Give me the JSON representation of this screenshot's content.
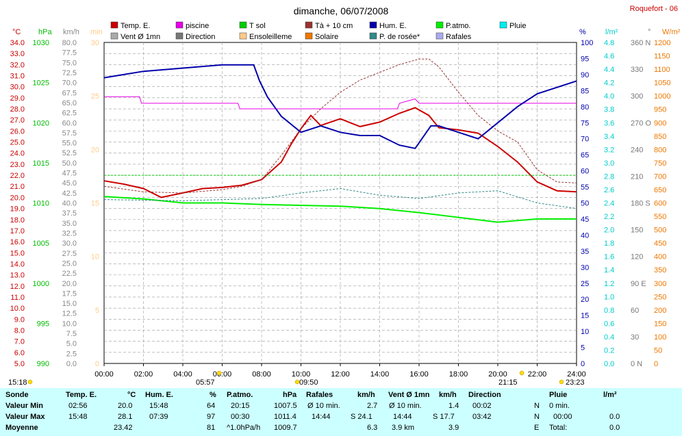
{
  "title": "dimanche, 06/07/2008",
  "station": "Roquefort - 06",
  "legend": [
    {
      "label": "Temp. E.",
      "color": "#cc0000",
      "style": "box"
    },
    {
      "label": "piscine",
      "color": "#e600e6",
      "style": "box"
    },
    {
      "label": "T sol",
      "color": "#00cc00",
      "style": "box"
    },
    {
      "label": "Tà + 10 cm",
      "color": "#993333",
      "style": "box"
    },
    {
      "label": "Hum. E.",
      "color": "#0000aa",
      "style": "box"
    },
    {
      "label": "P.atmo.",
      "color": "#00ee00",
      "style": "box"
    },
    {
      "label": "Pluie",
      "color": "#00eeee",
      "style": "box"
    },
    {
      "label": "Vent Ø 1mn",
      "color": "#aaaaaa",
      "style": "box"
    },
    {
      "label": "Direction",
      "color": "#777777",
      "style": "box"
    },
    {
      "label": "Ensoleilleme",
      "color": "#ffcc88",
      "style": "box"
    },
    {
      "label": "Solaire",
      "color": "#ee7700",
      "style": "box"
    },
    {
      "label": "P. de rosée*",
      "color": "#338888",
      "style": "box"
    },
    {
      "label": "Rafales",
      "color": "#aaaaee",
      "style": "box"
    }
  ],
  "axis_units": {
    "temp": "°C",
    "press": "hPa",
    "wind": "km/h",
    "min": "min",
    "hum": "%",
    "rain": "l/m²",
    "dir": "°",
    "solar": "W/m²"
  },
  "chart_data": {
    "type": "line",
    "x_ticks": [
      "00:00",
      "02:00",
      "04:00",
      "06:00",
      "08:00",
      "10:00",
      "12:00",
      "14:00",
      "16:00",
      "18:00",
      "20:00",
      "22:00",
      "24:00"
    ],
    "axes": {
      "temp": {
        "min": 5,
        "max": 34,
        "step": 1,
        "color": "#cc0000"
      },
      "press": {
        "min": 990,
        "max": 1030,
        "step": 5,
        "color": "#00bb00"
      },
      "wind": {
        "min": 0,
        "max": 80,
        "step": 2.5,
        "color": "#888888"
      },
      "minutes": {
        "min": 0,
        "max": 30,
        "step": 5,
        "color": "#ffcc88"
      },
      "hum": {
        "min": 0,
        "max": 100,
        "step": 5,
        "color": "#0000aa"
      },
      "rain": {
        "min": 0,
        "max": 4.8,
        "step": 0.2,
        "color": "#00cccc"
      },
      "dir": {
        "min": 0,
        "max": 360,
        "step": 30,
        "color": "#777777",
        "labels": {
          "0": "N",
          "90": "E",
          "180": "S",
          "270": "O",
          "360": "N"
        }
      },
      "solar": {
        "min": 0,
        "max": 1200,
        "step": 50,
        "color": "#ee7700"
      }
    },
    "series": [
      {
        "name": "Temp. E.",
        "axis": "temp",
        "color": "#cc0000",
        "x": [
          0,
          1,
          2,
          2.9,
          4,
          5,
          6,
          7,
          8,
          9,
          9.5,
          10,
          10.5,
          11,
          12,
          13,
          14,
          15,
          15.8,
          16.5,
          17,
          18,
          19,
          20,
          21,
          22,
          22.5,
          23,
          24
        ],
        "y": [
          21.5,
          21.2,
          20.8,
          20.0,
          20.4,
          20.8,
          20.9,
          21.1,
          21.6,
          23.2,
          24.8,
          26.2,
          27.4,
          26.5,
          27.1,
          26.4,
          26.8,
          27.6,
          28.1,
          27.4,
          26.3,
          26.1,
          25.8,
          24.6,
          23.2,
          21.4,
          21.0,
          20.6,
          20.5
        ]
      },
      {
        "name": "piscine",
        "axis": "temp",
        "color": "#e600e6",
        "x": [
          0,
          1.8,
          1.9,
          6.8,
          6.9,
          10,
          14.9,
          15.0,
          15.8,
          16.0,
          21.9,
          22.0,
          24
        ],
        "y": [
          29.1,
          29.1,
          28.5,
          28.5,
          28.0,
          28.0,
          28.0,
          28.5,
          28.9,
          28.5,
          28.5,
          28.5,
          28.5
        ]
      },
      {
        "name": "T sol",
        "axis": "temp",
        "color": "#00cc00",
        "x": [
          0,
          24
        ],
        "y": [
          22.0,
          22.0
        ]
      },
      {
        "name": "Tà + 10 cm",
        "axis": "temp",
        "color": "#993333",
        "x": [
          0,
          2,
          4,
          6,
          7,
          8,
          9,
          10,
          11,
          12,
          13,
          14,
          15,
          16,
          16.5,
          17,
          18,
          19,
          20,
          21,
          22,
          23,
          24
        ],
        "y": [
          21.0,
          20.5,
          20.4,
          20.7,
          21.0,
          21.6,
          23.8,
          26.2,
          28.0,
          29.5,
          30.6,
          31.3,
          32.0,
          32.5,
          32.5,
          31.8,
          29.5,
          27.4,
          26.0,
          25.0,
          22.5,
          21.4,
          21.3
        ]
      },
      {
        "name": "Hum. E.",
        "axis": "hum",
        "color": "#0000aa",
        "x": [
          0,
          1,
          2,
          4,
          6,
          7.6,
          7.9,
          8.3,
          9,
          10,
          11,
          12,
          13,
          14,
          15,
          15.8,
          16.6,
          17,
          18,
          19,
          20,
          21,
          22,
          23,
          24
        ],
        "y": [
          89,
          90,
          91,
          92,
          93,
          93,
          88,
          83,
          77,
          72,
          74,
          72,
          71,
          71,
          68,
          67,
          74,
          74,
          72,
          70,
          75,
          80,
          84,
          86,
          88
        ]
      },
      {
        "name": "P.atmo.",
        "axis": "press",
        "color": "#00ee00",
        "x": [
          0,
          2,
          4,
          6,
          8,
          10,
          12,
          14,
          16,
          18,
          20,
          22,
          24
        ],
        "y": [
          1010.8,
          1010.5,
          1010.0,
          1010.0,
          1009.8,
          1009.7,
          1009.6,
          1009.3,
          1008.8,
          1008.2,
          1007.6,
          1008.0,
          1008.0
        ]
      },
      {
        "name": "P. de rosée*",
        "axis": "temp",
        "color": "#338888",
        "x": [
          0,
          4,
          8,
          10,
          12,
          14,
          16,
          18,
          20,
          22,
          24
        ],
        "y": [
          19.8,
          19.7,
          19.9,
          20.4,
          20.8,
          20.2,
          19.9,
          20.4,
          20.6,
          19.5,
          19.0
        ]
      }
    ],
    "minmax": {
      "max_temp": 28.1,
      "min_temp": 20.0,
      "max_hum": 97,
      "min_hum": 64
    }
  },
  "timeline": {
    "left_time": "15:18",
    "right_time": "23:23",
    "marker_sunrise": "05:57",
    "marker_sunset": "21:15",
    "marker_morning": "09:50"
  },
  "summary": {
    "rows": [
      "Sonde",
      "Valeur Min",
      "Valeur Max",
      "Moyenne"
    ],
    "cols": [
      {
        "header": "Temp. E.",
        "unit": "°C",
        "cells": [
          [
            "02:56",
            "20.0"
          ],
          [
            "15:48",
            "28.1"
          ],
          [
            "",
            "23.42"
          ]
        ]
      },
      {
        "header": "Hum. E.",
        "unit": "%",
        "cells": [
          [
            "15:48",
            "64"
          ],
          [
            "07:39",
            "97"
          ],
          [
            "",
            "81"
          ]
        ]
      },
      {
        "header": "P.atmo.",
        "unit": "hPa",
        "cells": [
          [
            "20:15",
            "1007.5"
          ],
          [
            "00:30",
            "1011.4"
          ],
          [
            "^1.0hPa/h",
            "1009.7"
          ]
        ]
      },
      {
        "header": "Rafales",
        "unit": "km/h",
        "cells": [
          [
            "Ø 10 min.",
            "2.7"
          ],
          [
            "14:44",
            "S 24.1"
          ],
          [
            "",
            "6.3"
          ]
        ]
      },
      {
        "header": "Vent Ø 1mn",
        "unit": "km/h",
        "cells": [
          [
            "Ø 10 min.",
            "1.4"
          ],
          [
            "14:44",
            "S 17.7"
          ],
          [
            "3.9 km",
            "3.9"
          ]
        ]
      },
      {
        "header": "Direction",
        "unit": "",
        "cells": [
          [
            "00:02",
            "N"
          ],
          [
            "03:42",
            "N"
          ],
          [
            "",
            "E"
          ]
        ]
      },
      {
        "header": "Pluie",
        "unit": "l/m²",
        "cells": [
          [
            "0 min.",
            ""
          ],
          [
            "00:00",
            "0.0"
          ],
          [
            "Total:",
            "0.0"
          ]
        ]
      }
    ]
  }
}
